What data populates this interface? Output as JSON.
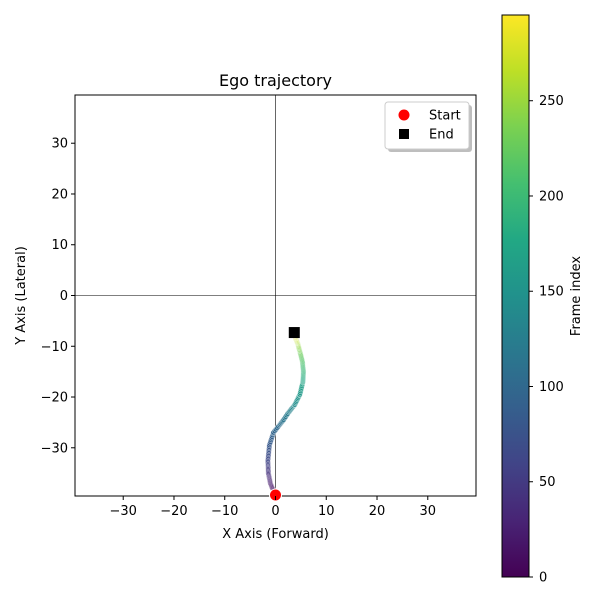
{
  "chart_data": {
    "type": "scatter",
    "title": "Ego trajectory",
    "xlabel": "X Axis (Forward)",
    "ylabel": "Y Axis (Lateral)",
    "xlim": [
      -39.5,
      39.5
    ],
    "ylim": [
      -39.5,
      39.5
    ],
    "xticks": [
      -30,
      -20,
      -10,
      0,
      10,
      20,
      30
    ],
    "yticks": [
      -30,
      -20,
      -10,
      0,
      10,
      20,
      30
    ],
    "grid": false,
    "zero_lines": true,
    "legend": {
      "placement": "top-right",
      "entries": [
        {
          "label": "Start",
          "marker": "circle",
          "color": "#ff0000"
        },
        {
          "label": "End",
          "marker": "square",
          "color": "#000000"
        }
      ]
    },
    "colorbar": {
      "label": "Frame index",
      "colormap": "viridis",
      "range": [
        0,
        295
      ],
      "ticks": [
        0,
        50,
        100,
        150,
        200,
        250
      ]
    },
    "trajectory_keypoints": [
      {
        "frame": 0,
        "x": 0.0,
        "y": -39.0
      },
      {
        "frame": 10,
        "x": -0.6,
        "y": -38.0
      },
      {
        "frame": 20,
        "x": -1.0,
        "y": -37.0
      },
      {
        "frame": 40,
        "x": -1.4,
        "y": -35.0
      },
      {
        "frame": 60,
        "x": -1.5,
        "y": -32.5
      },
      {
        "frame": 80,
        "x": -1.2,
        "y": -29.5
      },
      {
        "frame": 95,
        "x": -0.4,
        "y": -27.0
      },
      {
        "frame": 105,
        "x": 0.8,
        "y": -25.5
      },
      {
        "frame": 115,
        "x": 1.6,
        "y": -24.5
      },
      {
        "frame": 125,
        "x": 2.6,
        "y": -23.0
      },
      {
        "frame": 140,
        "x": 3.8,
        "y": -21.5
      },
      {
        "frame": 155,
        "x": 4.8,
        "y": -19.5
      },
      {
        "frame": 170,
        "x": 5.4,
        "y": -17.0
      },
      {
        "frame": 190,
        "x": 5.5,
        "y": -15.0
      },
      {
        "frame": 210,
        "x": 5.3,
        "y": -13.0
      },
      {
        "frame": 230,
        "x": 4.8,
        "y": -11.0
      },
      {
        "frame": 250,
        "x": 4.4,
        "y": -9.5
      },
      {
        "frame": 270,
        "x": 4.0,
        "y": -8.5
      },
      {
        "frame": 295,
        "x": 3.7,
        "y": -7.5
      }
    ],
    "start": {
      "x": 0.0,
      "y": -39.3
    },
    "end": {
      "x": 3.7,
      "y": -7.3
    }
  }
}
